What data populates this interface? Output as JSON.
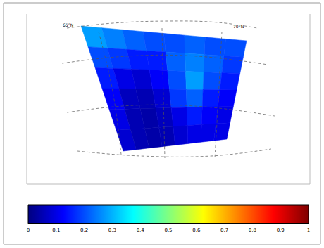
{
  "chart_data": {
    "type": "heatmap",
    "annotations": [
      "65°N",
      "70°N"
    ],
    "cells": [
      [
        0.28,
        0.25,
        0.22,
        0.2,
        0.2,
        0.22,
        0.2,
        0.2
      ],
      [
        0.2,
        0.18,
        0.15,
        0.15,
        0.22,
        0.25,
        0.22,
        0.18
      ],
      [
        0.15,
        0.1,
        0.08,
        0.12,
        0.2,
        0.28,
        0.2,
        0.15
      ],
      [
        0.12,
        0.06,
        0.05,
        0.08,
        0.18,
        0.22,
        0.15,
        0.12
      ],
      [
        0.1,
        0.05,
        0.04,
        0.06,
        0.1,
        0.15,
        0.12,
        0.1
      ],
      [
        0.08,
        0.05,
        0.04,
        0.05,
        0.08,
        0.1,
        0.1,
        0.1
      ]
    ],
    "colorbar": {
      "range": [
        0,
        1
      ],
      "ticks": [
        0,
        0.1,
        0.2,
        0.3,
        0.4,
        0.5,
        0.6,
        0.7,
        0.8,
        0.9,
        1
      ]
    }
  }
}
